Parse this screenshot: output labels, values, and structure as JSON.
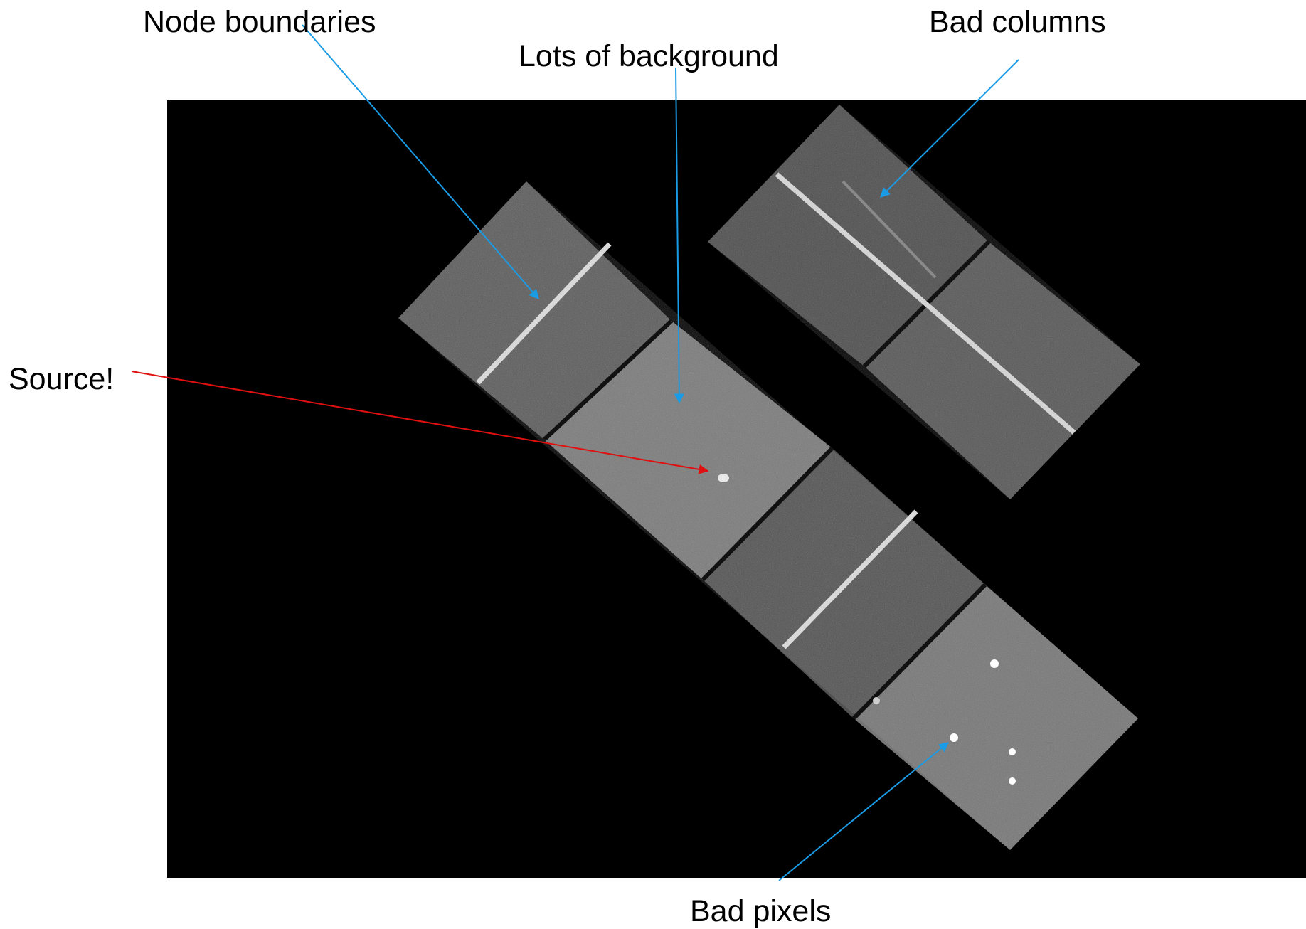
{
  "annotations": {
    "node_boundaries": "Node boundaries",
    "lots_of_background": "Lots of background",
    "bad_columns": "Bad columns",
    "source": "Source!",
    "bad_pixels": "Bad pixels"
  },
  "colors": {
    "background": "#ffffff",
    "image_background": "#000000",
    "blue_arrow": "#1a9be6",
    "red_arrow": "#e01010",
    "chip_gray": "#7a7a7a",
    "streak": "#d9d9d9",
    "bad_pixel": "#ffffff"
  }
}
